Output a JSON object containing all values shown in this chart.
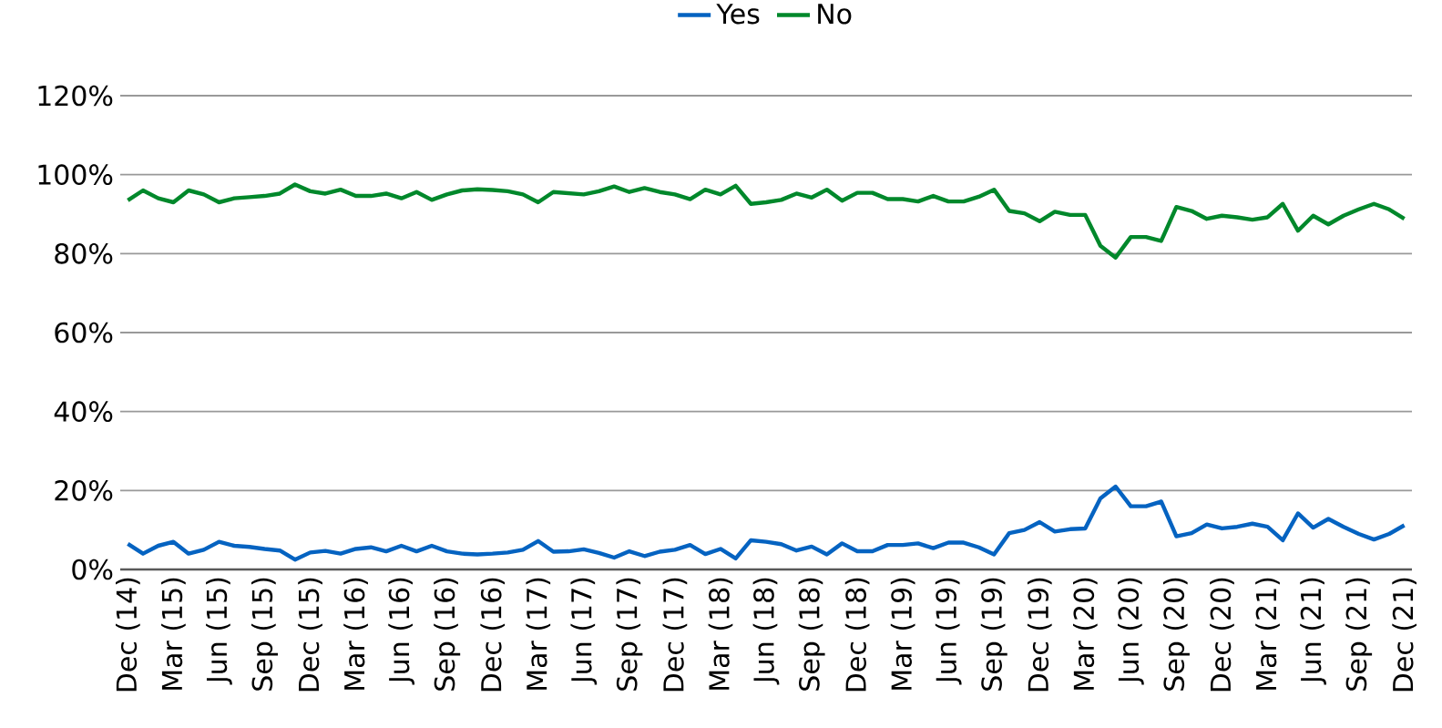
{
  "chart_data": {
    "type": "line",
    "categories": [
      "Dec (14)",
      null,
      null,
      "Mar (15)",
      null,
      null,
      "Jun (15)",
      null,
      null,
      "Sep (15)",
      null,
      null,
      "Dec (15)",
      null,
      null,
      "Mar (16)",
      null,
      null,
      "Jun (16)",
      null,
      null,
      "Sep (16)",
      null,
      null,
      "Dec (16)",
      null,
      null,
      "Mar (17)",
      null,
      null,
      "Jun (17)",
      null,
      null,
      "Sep (17)",
      null,
      null,
      "Dec (17)",
      null,
      null,
      "Mar (18)",
      null,
      null,
      "Jun (18)",
      null,
      null,
      "Sep (18)",
      null,
      null,
      "Dec (18)",
      null,
      null,
      "Mar (19)",
      null,
      null,
      "Jun (19)",
      null,
      null,
      "Sep (19)",
      null,
      null,
      "Dec (19)",
      null,
      null,
      "Mar (20)",
      null,
      null,
      "Jun (20)",
      null,
      null,
      "Sep (20)",
      null,
      null,
      "Dec (20)",
      null,
      null,
      "Mar (21)",
      null,
      null,
      "Jun (21)",
      null,
      null,
      "Sep (21)",
      null,
      null,
      "Dec (21)"
    ],
    "series": [
      {
        "name": "Yes",
        "color": "#0563c1",
        "values": [
          6.5,
          4,
          6,
          7,
          4,
          5,
          7,
          6,
          5.7,
          5.2,
          4.8,
          2.5,
          4.3,
          4.7,
          4,
          5.2,
          5.6,
          4.6,
          6,
          4.6,
          6,
          4.6,
          4,
          3.8,
          4,
          4.3,
          5,
          7.2,
          4.5,
          4.6,
          5.1,
          4.2,
          3,
          4.6,
          3.4,
          4.5,
          5,
          6.2,
          3.9,
          5.2,
          2.8,
          7.4,
          7,
          6.4,
          4.8,
          5.8,
          3.8,
          6.6,
          4.6,
          4.6,
          6.2,
          6.2,
          6.6,
          5.4,
          6.8,
          6.8,
          5.6,
          3.8,
          9.2,
          10,
          12,
          9.6,
          10.2,
          10.4,
          18,
          21,
          16,
          16,
          17.2,
          8.4,
          9.2,
          11.4,
          10.4,
          10.8,
          11.6,
          10.8,
          7.4,
          14.2,
          10.6,
          12.8,
          10.8,
          9,
          7.6,
          9,
          11.2
        ]
      },
      {
        "name": "No",
        "color": "#00882b",
        "values": [
          93.5,
          96,
          94,
          93,
          96,
          95,
          93,
          94,
          94.3,
          94.6,
          95.2,
          97.5,
          95.8,
          95.2,
          96.2,
          94.6,
          94.6,
          95.2,
          94,
          95.6,
          93.6,
          95,
          96,
          96.3,
          96.1,
          95.8,
          95,
          93,
          95.6,
          95.3,
          95,
          95.8,
          97,
          95.6,
          96.6,
          95.6,
          95,
          93.8,
          96.2,
          95,
          97.2,
          92.6,
          93,
          93.6,
          95.2,
          94.2,
          96.2,
          93.4,
          95.4,
          95.4,
          93.8,
          93.8,
          93.2,
          94.6,
          93.2,
          93.2,
          94.4,
          96.2,
          90.8,
          90.2,
          88.2,
          90.6,
          89.8,
          89.8,
          82,
          79,
          84.2,
          84.2,
          83.2,
          91.8,
          90.8,
          88.8,
          89.6,
          89.2,
          88.6,
          89.2,
          92.6,
          85.8,
          89.6,
          87.4,
          89.6,
          91.2,
          92.6,
          91.2,
          88.8
        ]
      }
    ],
    "ylim": [
      0,
      120
    ],
    "yticks": [
      {
        "value": 0,
        "label": "0%"
      },
      {
        "value": 20,
        "label": "20%"
      },
      {
        "value": 40,
        "label": "40%"
      },
      {
        "value": 60,
        "label": "60%"
      },
      {
        "value": 80,
        "label": "80%"
      },
      {
        "value": 100,
        "label": "100%"
      },
      {
        "value": 120,
        "label": "120%"
      }
    ],
    "grid": "y",
    "legend": "top",
    "marker": "none",
    "line_style": "solid"
  }
}
